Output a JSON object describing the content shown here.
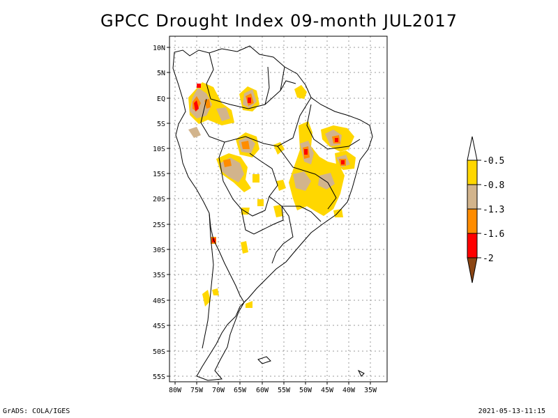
{
  "title": "GPCC Drought Index 09-month JUL2017",
  "credit": "GrADS: COLA/IGES",
  "timestamp": "2021-05-13-11:15",
  "lat_labels": [
    "10N",
    "5N",
    "EQ",
    "5S",
    "10S",
    "15S",
    "20S",
    "25S",
    "30S",
    "35S",
    "40S",
    "45S",
    "50S",
    "55S"
  ],
  "lon_labels": [
    "80W",
    "75W",
    "70W",
    "65W",
    "60W",
    "55W",
    "50W",
    "45W",
    "40W",
    "35W"
  ],
  "legend": {
    "labels": [
      "-0.5",
      "-0.8",
      "-1.3",
      "-1.6",
      "-2"
    ],
    "colors": [
      "#ffffff",
      "#ffd700",
      "#d2b48c",
      "#ff8c00",
      "#ff0000",
      "#8b4513"
    ]
  },
  "colors": {
    "moderate": "#ffd700",
    "severe": "#d2b48c",
    "very": "#ff8c00",
    "extreme": "#ff0000",
    "exceptional": "#8b4513"
  }
}
